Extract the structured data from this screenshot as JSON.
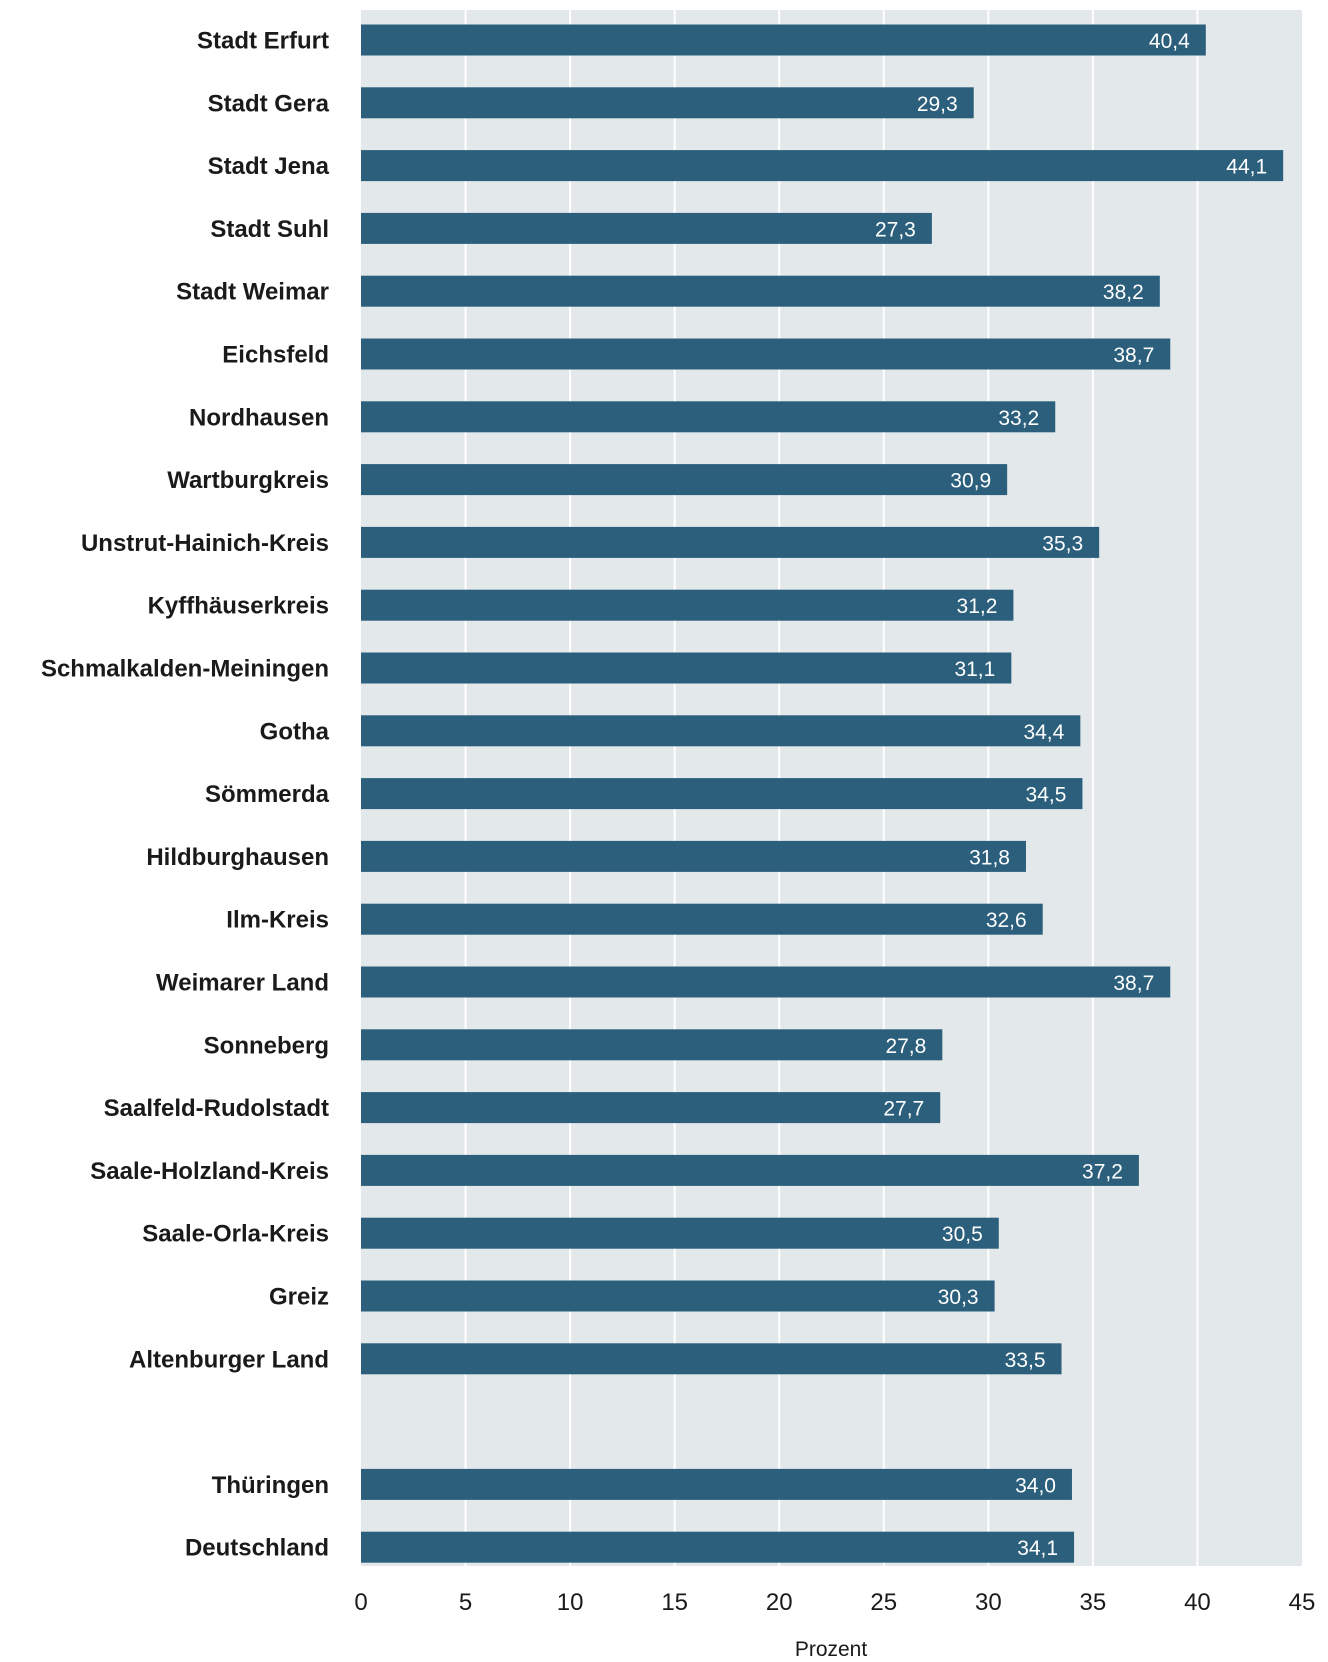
{
  "chart_data": {
    "type": "bar",
    "orientation": "horizontal",
    "categories": [
      "Stadt Erfurt",
      "Stadt Gera",
      "Stadt Jena",
      "Stadt Suhl",
      "Stadt Weimar",
      "Eichsfeld",
      "Nordhausen",
      "Wartburgkreis",
      "Unstrut-Hainich-Kreis",
      "Kyffhäuserkreis",
      "Schmalkalden-Meiningen",
      "Gotha",
      "Sömmerda",
      "Hildburghausen",
      "Ilm-Kreis",
      "Weimarer Land",
      "Sonneberg",
      "Saalfeld-Rudolstadt",
      "Saale-Holzland-Kreis",
      "Saale-Orla-Kreis",
      "Greiz",
      "Altenburger Land",
      "",
      "Thüringen",
      "Deutschland"
    ],
    "values": [
      40.4,
      29.3,
      44.1,
      27.3,
      38.2,
      38.7,
      33.2,
      30.9,
      35.3,
      31.2,
      31.1,
      34.4,
      34.5,
      31.8,
      32.6,
      38.7,
      27.8,
      27.7,
      37.2,
      30.5,
      30.3,
      33.5,
      null,
      34.0,
      34.1
    ],
    "value_labels": [
      "40,4",
      "29,3",
      "44,1",
      "27,3",
      "38,2",
      "38,7",
      "33,2",
      "30,9",
      "35,3",
      "31,2",
      "31,1",
      "34,4",
      "34,5",
      "31,8",
      "32,6",
      "38,7",
      "27,8",
      "27,7",
      "37,2",
      "30,5",
      "30,3",
      "33,5",
      "",
      "34,0",
      "34,1"
    ],
    "xlabel": "Prozent",
    "ylabel": "",
    "xlim": [
      0,
      45
    ],
    "xticks": [
      0,
      5,
      10,
      15,
      20,
      25,
      30,
      35,
      40,
      45
    ],
    "grid": "vertical",
    "colors": {
      "bar": "#2b5f7c",
      "plot_background": "#e3e8eb",
      "grid": "#ffffff",
      "value_label": "#ffffff"
    }
  }
}
